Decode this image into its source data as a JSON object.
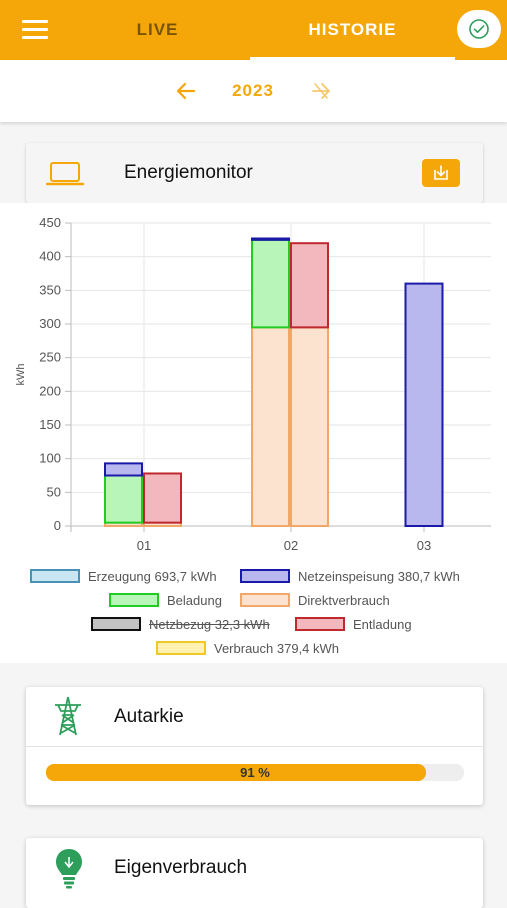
{
  "header": {
    "tabs": [
      {
        "label": "LIVE",
        "active": false
      },
      {
        "label": "HISTORIE",
        "active": true
      }
    ],
    "status_icon": "check-circle-icon"
  },
  "year_nav": {
    "year": "2023",
    "prev_icon": "arrow-left-icon",
    "next_icon": "arrow-right-disabled-icon"
  },
  "energy_card": {
    "title": "Energiemonitor",
    "icon": "laptop-icon",
    "download_icon": "download-icon"
  },
  "chart_data": {
    "type": "bar",
    "stacked": true,
    "categories": [
      "01",
      "02",
      "03"
    ],
    "ylabel": "kWh",
    "ylim": [
      0,
      450
    ],
    "yticks": [
      0,
      50,
      100,
      150,
      200,
      250,
      300,
      350,
      400,
      450
    ],
    "grid": true,
    "legend_position": "bottom",
    "stacks": [
      {
        "stack": "left",
        "series": [
          {
            "name": "Direktverbrauch",
            "color_fill": "#fce3d0",
            "color_stroke": "#f0a86a",
            "values": [
              5,
              295,
              0
            ]
          },
          {
            "name": "Beladung",
            "color_fill": "#b8f5b8",
            "color_stroke": "#22cc22",
            "values": [
              70,
              130,
              0
            ]
          },
          {
            "name": "Netzeinspeisung",
            "color_fill": "#b8b8ef",
            "color_stroke": "#1a1aa8",
            "values": [
              18,
              2,
              360
            ]
          }
        ]
      },
      {
        "stack": "right",
        "series": [
          {
            "name": "Direktverbrauch",
            "color_fill": "#fce3d0",
            "color_stroke": "#f0a86a",
            "values": [
              5,
              295,
              0
            ]
          },
          {
            "name": "Entladung",
            "color_fill": "#f2b8bd",
            "color_stroke": "#c0282f",
            "values": [
              73,
              125,
              0
            ]
          }
        ]
      }
    ],
    "legend": [
      {
        "label": "Erzeugung 693,7 kWh",
        "fill": "#c9e6f2",
        "stroke": "#4a90b8",
        "hidden": false
      },
      {
        "label": "Netzeinspeisung 380,7 kWh",
        "fill": "#b8b8ef",
        "stroke": "#1a1aa8",
        "hidden": false
      },
      {
        "label": "Beladung",
        "fill": "#b8f5b8",
        "stroke": "#22cc22",
        "hidden": false
      },
      {
        "label": "Direktverbrauch",
        "fill": "#fce3d0",
        "stroke": "#f0a86a",
        "hidden": false
      },
      {
        "label": "Netzbezug 32,3 kWh",
        "fill": "#c4c4c4",
        "stroke": "#111111",
        "hidden": true
      },
      {
        "label": "Entladung",
        "fill": "#f2b8bd",
        "stroke": "#c0282f",
        "hidden": false
      },
      {
        "label": "Verbrauch 379,4 kWh",
        "fill": "#fff2b0",
        "stroke": "#f0c828",
        "hidden": false
      }
    ]
  },
  "autarkie": {
    "title": "Autarkie",
    "icon": "power-tower-icon",
    "value_percent": 91,
    "value_text": "91 %"
  },
  "eigenverbrauch": {
    "title": "Eigenverbrauch",
    "icon": "lightbulb-icon"
  },
  "colors": {
    "accent": "#f5a70a",
    "dark_accent": "#7a5406",
    "green_icon": "#2e9e5b"
  }
}
